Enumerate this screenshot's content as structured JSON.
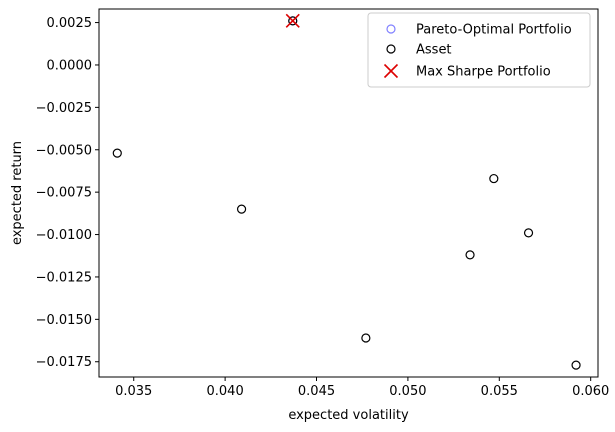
{
  "chart_data": {
    "type": "scatter",
    "xlabel": "expected volatility",
    "ylabel": "expected return",
    "xlim": [
      0.0331,
      0.0604
    ],
    "ylim": [
      -0.0184,
      0.0033
    ],
    "x_ticks": [
      0.035,
      0.04,
      0.045,
      0.05,
      0.055,
      0.06
    ],
    "x_tick_labels": [
      "0.035",
      "0.040",
      "0.045",
      "0.050",
      "0.055",
      "0.060"
    ],
    "y_ticks": [
      0.0025,
      0.0,
      -0.0025,
      -0.005,
      -0.0075,
      -0.01,
      -0.0125,
      -0.015,
      -0.0175
    ],
    "y_tick_labels": [
      "0.0025",
      "0.0000",
      "−0.0025",
      "−0.0050",
      "−0.0075",
      "−0.0100",
      "−0.0125",
      "−0.0150",
      "−0.0175"
    ],
    "grid": false,
    "legend": "top-right",
    "series": [
      {
        "name": "Pareto-Optimal Portfolio",
        "marker": "open-circle",
        "color": "#8080ff",
        "points": [
          {
            "x": 0.0437,
            "y": 0.0026
          }
        ]
      },
      {
        "name": "Asset",
        "marker": "open-circle",
        "color": "#000000",
        "points": [
          {
            "x": 0.0341,
            "y": -0.0052
          },
          {
            "x": 0.0409,
            "y": -0.0085
          },
          {
            "x": 0.0437,
            "y": 0.0026
          },
          {
            "x": 0.0477,
            "y": -0.0161
          },
          {
            "x": 0.0534,
            "y": -0.0112
          },
          {
            "x": 0.0547,
            "y": -0.0067
          },
          {
            "x": 0.0566,
            "y": -0.0099
          },
          {
            "x": 0.0592,
            "y": -0.0177
          }
        ]
      },
      {
        "name": "Max Sharpe Portfolio",
        "marker": "x",
        "color": "#dd0000",
        "points": [
          {
            "x": 0.0437,
            "y": 0.0026
          }
        ]
      }
    ]
  }
}
